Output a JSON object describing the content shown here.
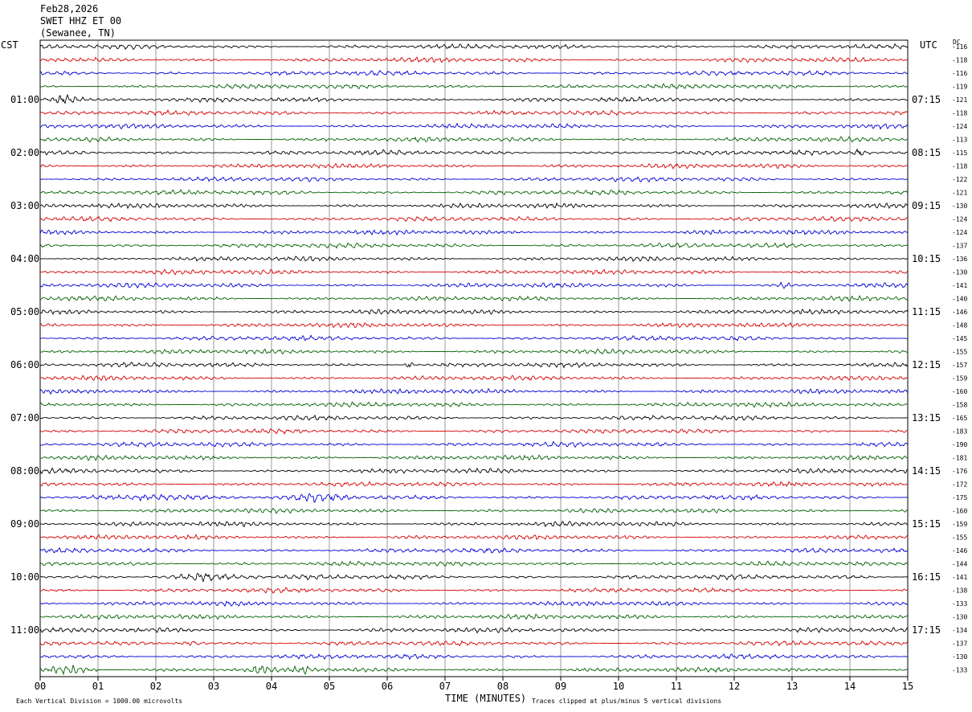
{
  "header": {
    "date": "Feb28,2026",
    "station": "SWET HHZ ET 00",
    "location": "(Sewanee, TN)"
  },
  "labels": {
    "left_timezone": "CST",
    "right_timezone": "UTC",
    "dc_label": "DC",
    "x_title": "TIME (MINUTES)",
    "scale_note": "Each Vertical Division = 1000.00 microvolts",
    "clip_note": "Traces clipped at plus/minus 5 vertical divisions"
  },
  "chart_data": {
    "type": "line",
    "trace_minutes": 15,
    "trace_count": 48,
    "trace_colors": [
      "#000000",
      "#d40000",
      "#0000d4",
      "#006000"
    ],
    "x_ticks": [
      "00",
      "01",
      "02",
      "03",
      "04",
      "05",
      "06",
      "07",
      "08",
      "09",
      "10",
      "11",
      "12",
      "13",
      "14",
      "15"
    ],
    "left_hour_labels": [
      {
        "trace": 4,
        "label": "01:00"
      },
      {
        "trace": 8,
        "label": "02:00"
      },
      {
        "trace": 12,
        "label": "03:00"
      },
      {
        "trace": 16,
        "label": "04:00"
      },
      {
        "trace": 20,
        "label": "05:00"
      },
      {
        "trace": 24,
        "label": "06:00"
      },
      {
        "trace": 28,
        "label": "07:00"
      },
      {
        "trace": 32,
        "label": "08:00"
      },
      {
        "trace": 36,
        "label": "09:00"
      },
      {
        "trace": 40,
        "label": "10:00"
      },
      {
        "trace": 44,
        "label": "11:00"
      }
    ],
    "right_hour_labels": [
      {
        "trace": 4,
        "label": "07:15"
      },
      {
        "trace": 8,
        "label": "08:15"
      },
      {
        "trace": 12,
        "label": "09:15"
      },
      {
        "trace": 16,
        "label": "10:15"
      },
      {
        "trace": 20,
        "label": "11:15"
      },
      {
        "trace": 24,
        "label": "12:15"
      },
      {
        "trace": 28,
        "label": "13:15"
      },
      {
        "trace": 32,
        "label": "14:15"
      },
      {
        "trace": 36,
        "label": "15:15"
      },
      {
        "trace": 40,
        "label": "16:15"
      },
      {
        "trace": 44,
        "label": "17:15"
      }
    ],
    "dc_offsets": [
      -116,
      -118,
      -116,
      -119,
      -121,
      -118,
      -124,
      -113,
      -115,
      -118,
      -122,
      -121,
      -130,
      -124,
      -124,
      -137,
      -136,
      -130,
      -141,
      -140,
      -146,
      -148,
      -145,
      -155,
      -157,
      -159,
      -160,
      -158,
      -165,
      -183,
      -190,
      -181,
      -176,
      -172,
      -175,
      -160,
      -159,
      -155,
      -146,
      -144,
      -141,
      -138,
      -133,
      -130,
      -134,
      -137,
      -130,
      -133
    ],
    "events": [
      {
        "trace": 4,
        "minute_start": 0.05,
        "minute_end": 0.75,
        "amplitude": 2.4
      },
      {
        "trace": 8,
        "minute_start": 14.0,
        "minute_end": 14.35,
        "amplitude": 1.8
      },
      {
        "trace": 18,
        "minute_start": 12.75,
        "minute_end": 12.95,
        "amplitude": 1.7
      },
      {
        "trace": 24,
        "minute_start": 6.3,
        "minute_end": 6.45,
        "amplitude": 2.2
      },
      {
        "trace": 34,
        "minute_start": 0.9,
        "minute_end": 2.9,
        "amplitude": 1.7
      },
      {
        "trace": 34,
        "minute_start": 4.3,
        "minute_end": 5.4,
        "amplitude": 1.5
      },
      {
        "trace": 40,
        "minute_start": 1.8,
        "minute_end": 3.8,
        "amplitude": 1.3
      },
      {
        "trace": 45,
        "minute_start": 2.3,
        "minute_end": 2.9,
        "amplitude": 1.4
      },
      {
        "trace": 47,
        "minute_start": 0.0,
        "minute_end": 1.0,
        "amplitude": 2.0
      },
      {
        "trace": 47,
        "minute_start": 3.6,
        "minute_end": 4.0,
        "amplitude": 2.0
      },
      {
        "trace": 47,
        "minute_start": 4.4,
        "minute_end": 4.7,
        "amplitude": 1.6
      }
    ]
  }
}
